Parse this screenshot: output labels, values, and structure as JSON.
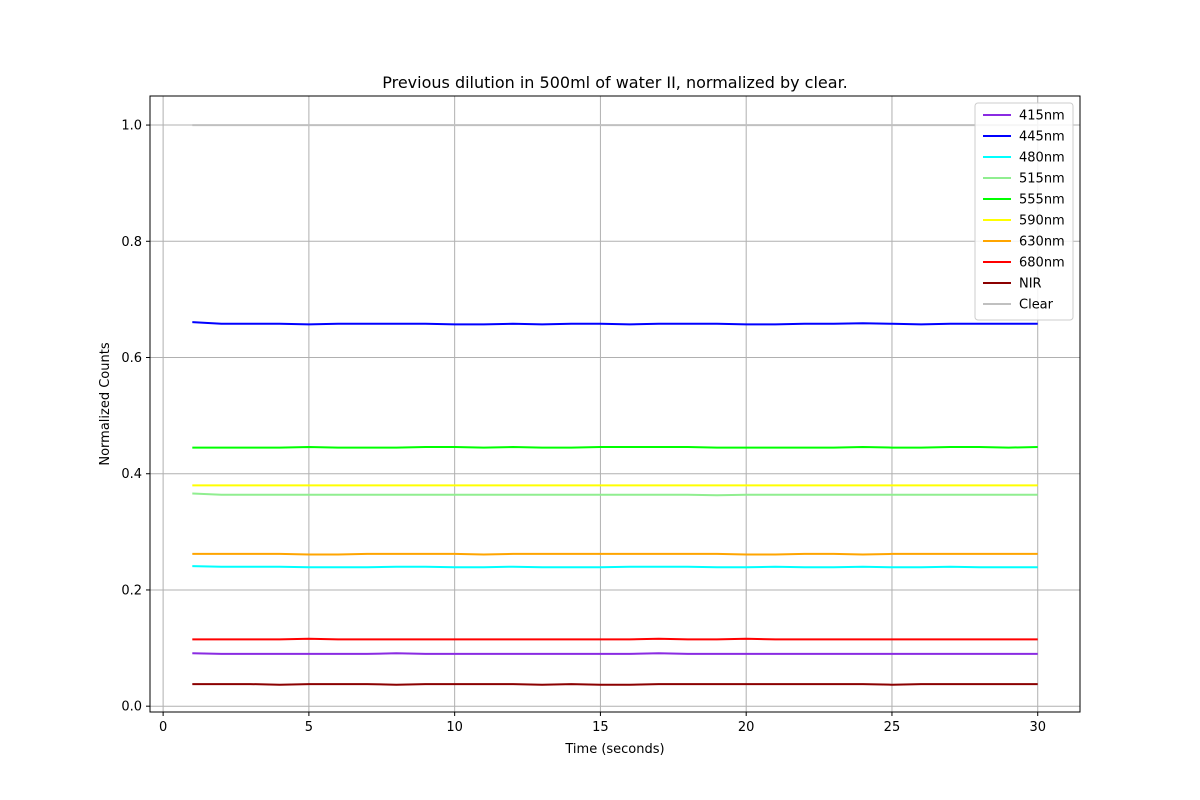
{
  "chart_data": {
    "type": "line",
    "title": "Previous dilution in 500ml of water II, normalized by clear.",
    "xlabel": "Time (seconds)",
    "ylabel": "Normalized Counts",
    "xlim": [
      -0.45,
      31.45
    ],
    "ylim": [
      -0.01,
      1.05
    ],
    "xticks": [
      0,
      5,
      10,
      15,
      20,
      25,
      30
    ],
    "yticks": [
      0.0,
      0.2,
      0.4,
      0.6,
      0.8,
      1.0
    ],
    "xtick_labels": [
      "0",
      "5",
      "10",
      "15",
      "20",
      "25",
      "30"
    ],
    "ytick_labels": [
      "0.0",
      "0.2",
      "0.4",
      "0.6",
      "0.8",
      "1.0"
    ],
    "grid": true,
    "legend_position": "top-right",
    "x": [
      1,
      2,
      3,
      4,
      5,
      6,
      7,
      8,
      9,
      10,
      11,
      12,
      13,
      14,
      15,
      16,
      17,
      18,
      19,
      20,
      21,
      22,
      23,
      24,
      25,
      26,
      27,
      28,
      29,
      30
    ],
    "series": [
      {
        "name": "415nm",
        "color": "#8a2be2",
        "values": [
          0.091,
          0.09,
          0.09,
          0.09,
          0.09,
          0.09,
          0.09,
          0.091,
          0.09,
          0.09,
          0.09,
          0.09,
          0.09,
          0.09,
          0.09,
          0.09,
          0.091,
          0.09,
          0.09,
          0.09,
          0.09,
          0.09,
          0.09,
          0.09,
          0.09,
          0.09,
          0.09,
          0.09,
          0.09,
          0.09
        ]
      },
      {
        "name": "445nm",
        "color": "#0000ff",
        "values": [
          0.661,
          0.658,
          0.658,
          0.658,
          0.657,
          0.658,
          0.658,
          0.658,
          0.658,
          0.657,
          0.657,
          0.658,
          0.657,
          0.658,
          0.658,
          0.657,
          0.658,
          0.658,
          0.658,
          0.657,
          0.657,
          0.658,
          0.658,
          0.659,
          0.658,
          0.657,
          0.658,
          0.658,
          0.658,
          0.658
        ]
      },
      {
        "name": "480nm",
        "color": "#00ffff",
        "values": [
          0.241,
          0.24,
          0.24,
          0.24,
          0.239,
          0.239,
          0.239,
          0.24,
          0.24,
          0.239,
          0.239,
          0.24,
          0.239,
          0.239,
          0.239,
          0.24,
          0.24,
          0.24,
          0.239,
          0.239,
          0.24,
          0.239,
          0.239,
          0.24,
          0.239,
          0.239,
          0.24,
          0.239,
          0.239,
          0.239
        ]
      },
      {
        "name": "515nm",
        "color": "#90ee90",
        "values": [
          0.366,
          0.364,
          0.364,
          0.364,
          0.364,
          0.364,
          0.364,
          0.364,
          0.364,
          0.364,
          0.364,
          0.364,
          0.364,
          0.364,
          0.364,
          0.364,
          0.364,
          0.364,
          0.363,
          0.364,
          0.364,
          0.364,
          0.364,
          0.364,
          0.364,
          0.364,
          0.364,
          0.364,
          0.364,
          0.364
        ]
      },
      {
        "name": "555nm",
        "color": "#00ff00",
        "values": [
          0.445,
          0.445,
          0.445,
          0.445,
          0.446,
          0.445,
          0.445,
          0.445,
          0.446,
          0.446,
          0.445,
          0.446,
          0.445,
          0.445,
          0.446,
          0.446,
          0.446,
          0.446,
          0.445,
          0.445,
          0.445,
          0.445,
          0.445,
          0.446,
          0.445,
          0.445,
          0.446,
          0.446,
          0.445,
          0.446
        ]
      },
      {
        "name": "590nm",
        "color": "#ffff00",
        "values": [
          0.38,
          0.38,
          0.38,
          0.38,
          0.38,
          0.38,
          0.38,
          0.38,
          0.38,
          0.38,
          0.38,
          0.38,
          0.38,
          0.38,
          0.38,
          0.38,
          0.38,
          0.38,
          0.38,
          0.38,
          0.38,
          0.38,
          0.38,
          0.38,
          0.38,
          0.38,
          0.38,
          0.38,
          0.38,
          0.38
        ]
      },
      {
        "name": "630nm",
        "color": "#ffa500",
        "values": [
          0.262,
          0.262,
          0.262,
          0.262,
          0.261,
          0.261,
          0.262,
          0.262,
          0.262,
          0.262,
          0.261,
          0.262,
          0.262,
          0.262,
          0.262,
          0.262,
          0.262,
          0.262,
          0.262,
          0.261,
          0.261,
          0.262,
          0.262,
          0.261,
          0.262,
          0.262,
          0.262,
          0.262,
          0.262,
          0.262
        ]
      },
      {
        "name": "680nm",
        "color": "#ff0000",
        "values": [
          0.115,
          0.115,
          0.115,
          0.115,
          0.116,
          0.115,
          0.115,
          0.115,
          0.115,
          0.115,
          0.115,
          0.115,
          0.115,
          0.115,
          0.115,
          0.115,
          0.116,
          0.115,
          0.115,
          0.116,
          0.115,
          0.115,
          0.115,
          0.115,
          0.115,
          0.115,
          0.115,
          0.115,
          0.115,
          0.115
        ]
      },
      {
        "name": "NIR",
        "color": "#8b0000",
        "values": [
          0.038,
          0.038,
          0.038,
          0.037,
          0.038,
          0.038,
          0.038,
          0.037,
          0.038,
          0.038,
          0.038,
          0.038,
          0.037,
          0.038,
          0.037,
          0.037,
          0.038,
          0.038,
          0.038,
          0.038,
          0.038,
          0.038,
          0.038,
          0.038,
          0.037,
          0.038,
          0.038,
          0.038,
          0.038,
          0.038
        ]
      },
      {
        "name": "Clear",
        "color": "#c0c0c0",
        "values": [
          1.0,
          1.0,
          1.0,
          1.0,
          1.0,
          1.0,
          1.0,
          1.0,
          1.0,
          1.0,
          1.0,
          1.0,
          1.0,
          1.0,
          1.0,
          1.0,
          1.0,
          1.0,
          1.0,
          1.0,
          1.0,
          1.0,
          1.0,
          1.0,
          1.0,
          1.0,
          1.0,
          1.0,
          1.0,
          1.0
        ]
      }
    ]
  }
}
